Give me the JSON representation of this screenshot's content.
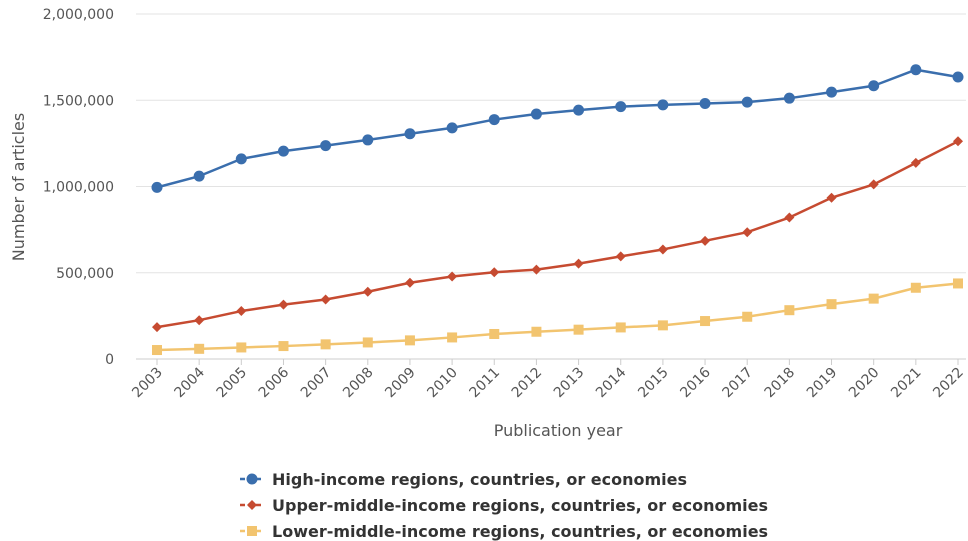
{
  "chart_data": {
    "type": "line",
    "xlabel": "Publication year",
    "ylabel": "Number of articles",
    "x": [
      "2003",
      "2004",
      "2005",
      "2006",
      "2007",
      "2008",
      "2009",
      "2010",
      "2011",
      "2012",
      "2013",
      "2014",
      "2015",
      "2016",
      "2017",
      "2018",
      "2019",
      "2020",
      "2021",
      "2022"
    ],
    "ylim": [
      0,
      2000000
    ],
    "yticks": [
      "0",
      "500,000",
      "1,000,000",
      "1,500,000",
      "2,000,000"
    ],
    "grid": true,
    "legend_position": "bottom",
    "series": [
      {
        "name": "High-income regions, countries, or economies",
        "color": "#3a6ead",
        "marker": "circle",
        "values": [
          995000,
          1060000,
          1160000,
          1205000,
          1237000,
          1270000,
          1306000,
          1340000,
          1388000,
          1420000,
          1443000,
          1463000,
          1473000,
          1481000,
          1489000,
          1512000,
          1547000,
          1584000,
          1677000,
          1635000
        ]
      },
      {
        "name": "Upper-middle-income regions, countries, or economies",
        "color": "#c64b31",
        "marker": "diamond",
        "values": [
          185000,
          225000,
          278000,
          315000,
          345000,
          390000,
          442000,
          478000,
          503000,
          518000,
          553000,
          595000,
          635000,
          685000,
          735000,
          820000,
          935000,
          1012000,
          1137000,
          1262000
        ]
      },
      {
        "name": "Lower-middle-income regions, countries, or economies",
        "color": "#f2c46f",
        "marker": "square",
        "values": [
          52000,
          59000,
          67000,
          75000,
          85000,
          96000,
          108000,
          125000,
          145000,
          158000,
          170000,
          183000,
          195000,
          220000,
          245000,
          283000,
          318000,
          350000,
          413000,
          438000
        ]
      }
    ]
  }
}
